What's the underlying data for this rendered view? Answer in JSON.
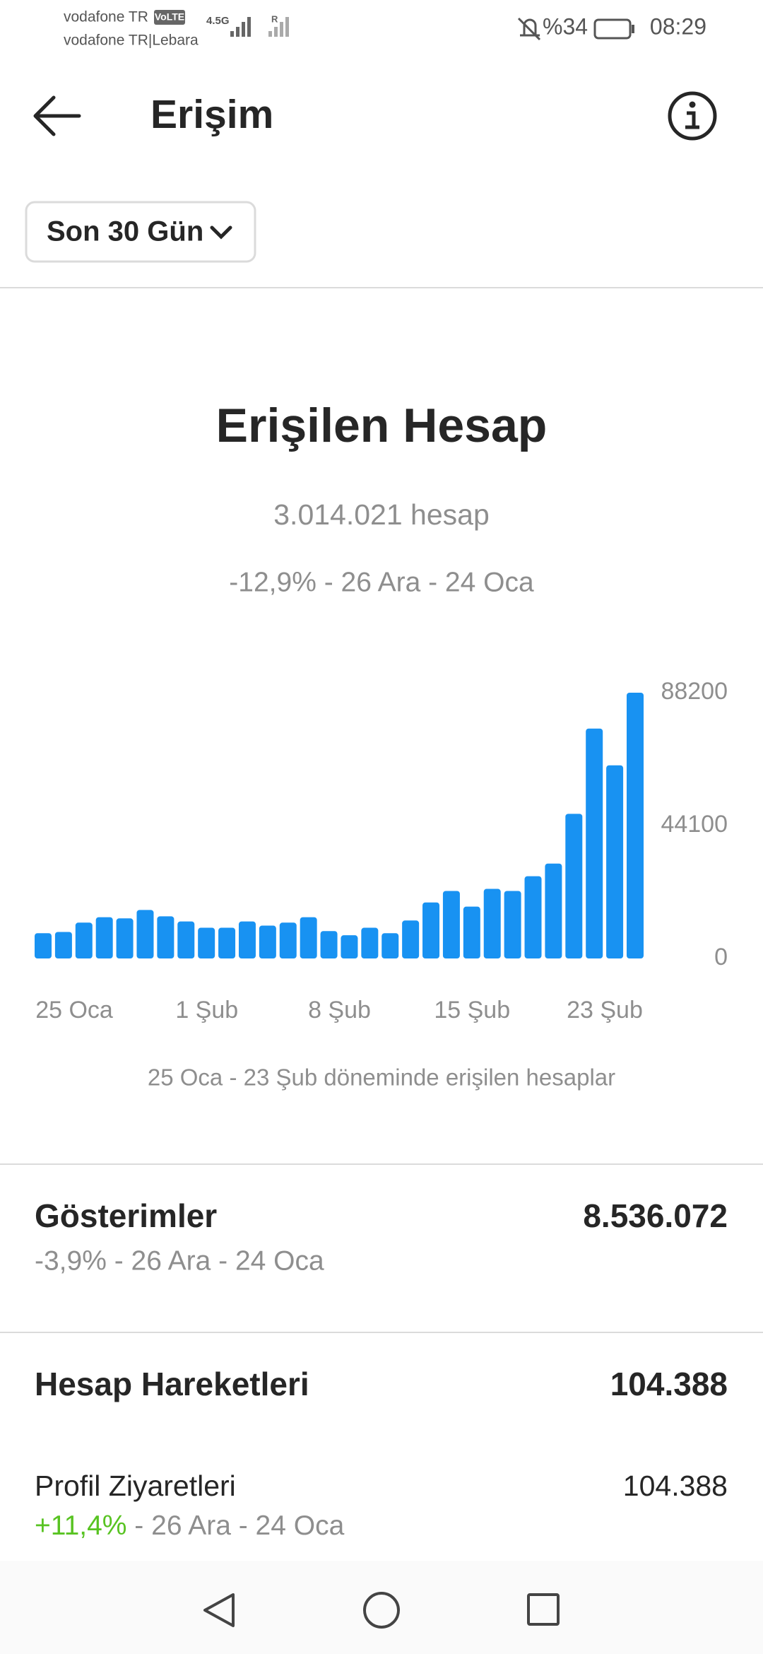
{
  "status_bar": {
    "carrier_1": "vodafone TR",
    "volte": "VoLTE",
    "carrier_2": "vodafone TR|Lebara",
    "network": "4.5G",
    "roaming": "R",
    "battery": "%34",
    "time": "08:29"
  },
  "header": {
    "title": "Erişim"
  },
  "filter": {
    "label": "Son 30 Gün"
  },
  "summary": {
    "title": "Erişilen Hesap",
    "total": "3.014.021 hesap",
    "change": "-12,9% - 26 Ara - 24 Oca"
  },
  "chart_data": {
    "type": "bar",
    "categories": [
      "25 Oca",
      null,
      null,
      null,
      null,
      null,
      null,
      "1 Şub",
      null,
      null,
      null,
      null,
      null,
      null,
      "8 Şub",
      null,
      null,
      null,
      null,
      null,
      null,
      "15 Şub",
      null,
      null,
      null,
      null,
      null,
      null,
      null,
      "23 Şub"
    ],
    "values": [
      8400,
      8800,
      11900,
      13700,
      13300,
      16100,
      14000,
      12300,
      10200,
      10200,
      12300,
      10900,
      11900,
      13700,
      9100,
      7700,
      10200,
      8400,
      12600,
      18600,
      22400,
      17200,
      23100,
      22400,
      27300,
      31500,
      48000,
      76300,
      64100,
      88200
    ],
    "color": "#1892f2",
    "ylim": [
      0,
      88200
    ],
    "yticks": [
      0,
      44100,
      88200
    ],
    "grid": false,
    "caption": "25 Oca - 23 Şub döneminde erişilen hesaplar"
  },
  "impressions": {
    "label": "Gösterimler",
    "value": "8.536.072",
    "change": "-3,9% - 26 Ara - 24 Oca"
  },
  "account_actions": {
    "label": "Hesap Hareketleri",
    "value": "104.388"
  },
  "profile_visits": {
    "label": "Profil Ziyaretleri",
    "value": "104.388",
    "change": "+11,4%",
    "period": " - 26 Ara - 24 Oca"
  }
}
